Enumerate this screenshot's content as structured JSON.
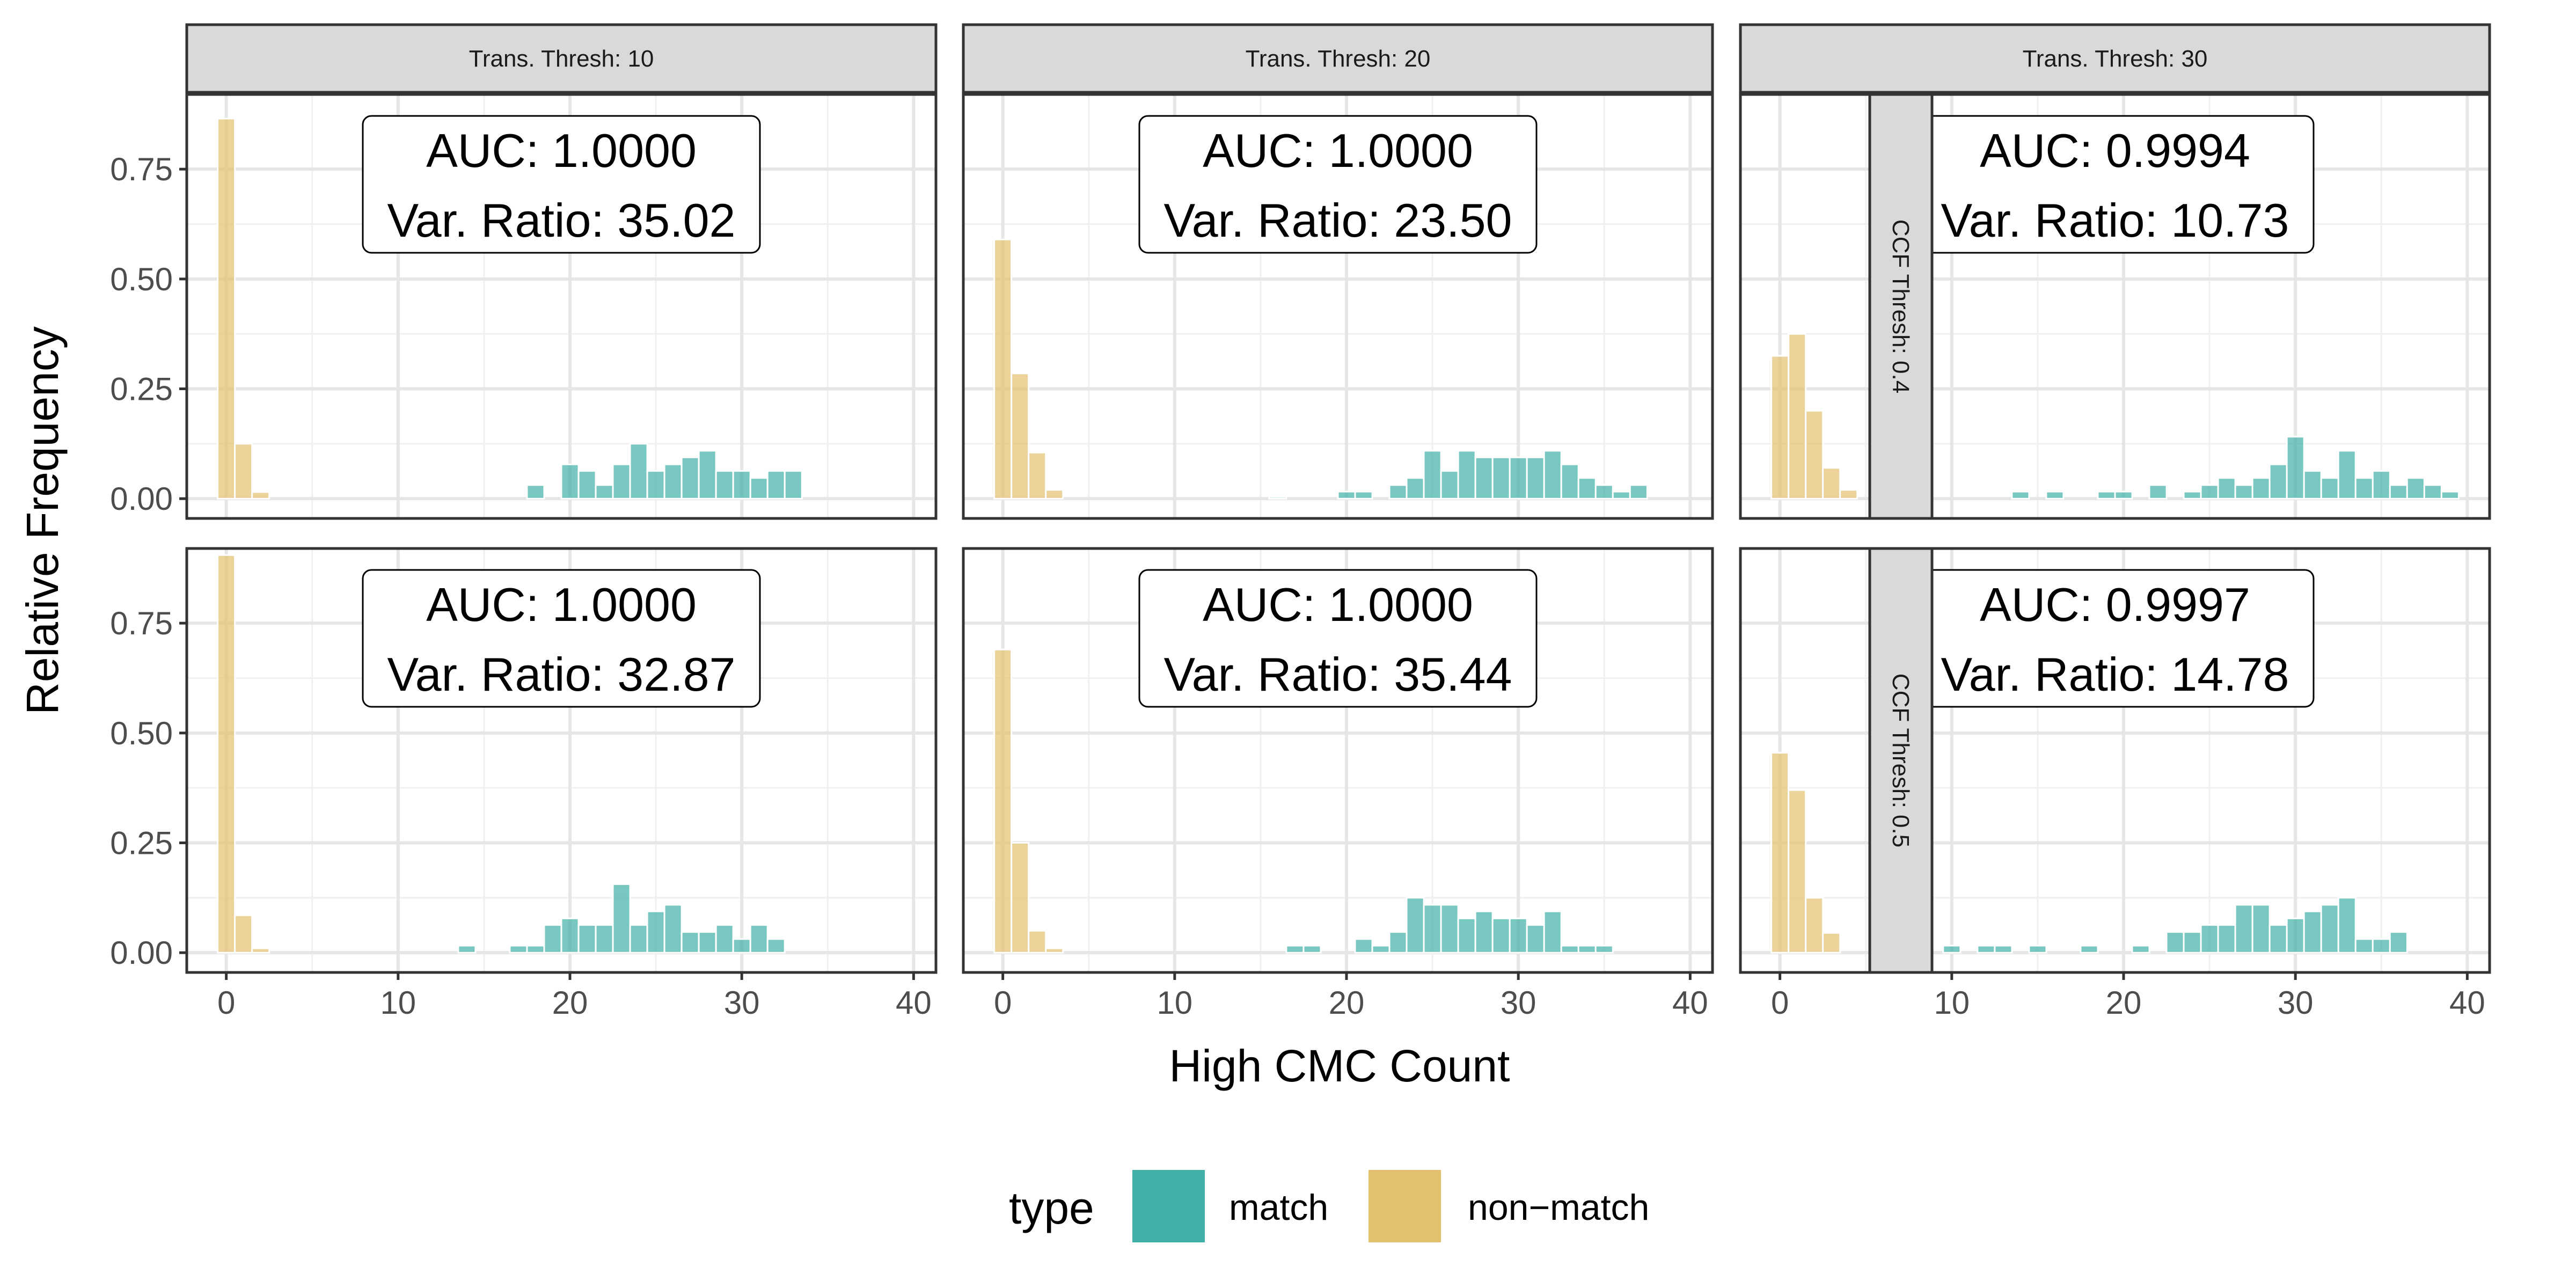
{
  "chart_data": {
    "type": "bar",
    "subtype": "faceted-histogram",
    "xlabel": "High CMC Count",
    "ylabel": "Relative Frequency",
    "xlim": [
      -2.3,
      41.3
    ],
    "ylim": [
      -0.045,
      0.92
    ],
    "x_ticks": [
      0,
      10,
      20,
      30,
      40
    ],
    "y_ticks": [
      0.0,
      0.25,
      0.5,
      0.75
    ],
    "y_tick_labels": [
      "0.00",
      "0.25",
      "0.50",
      "0.75"
    ],
    "grid": true,
    "column_facets": [
      "Trans. Thresh: 10",
      "Trans. Thresh: 20",
      "Trans. Thresh: 30"
    ],
    "row_facets": [
      "CCF Thresh: 0.4",
      "CCF Thresh: 0.5"
    ],
    "legend": {
      "title": "type",
      "position": "bottom",
      "entries": [
        {
          "label": "match",
          "color": "#3fb1a6"
        },
        {
          "label": "non−match",
          "color": "#e2c06d"
        }
      ]
    },
    "panels": [
      {
        "col": 0,
        "row": 0,
        "auc_label": "AUC: 1.0000",
        "var_ratio_label": "Var. Ratio: 35.02",
        "non_match": {
          "x": [
            0,
            1,
            2
          ],
          "values": [
            0.865,
            0.125,
            0.015
          ]
        },
        "match": {
          "x": [
            18,
            20,
            21,
            22,
            23,
            24,
            25,
            26,
            27,
            28,
            29,
            30,
            31,
            32,
            33
          ],
          "values": [
            0.031,
            0.078,
            0.063,
            0.031,
            0.078,
            0.125,
            0.063,
            0.078,
            0.094,
            0.109,
            0.063,
            0.063,
            0.047,
            0.063,
            0.063
          ]
        }
      },
      {
        "col": 1,
        "row": 0,
        "auc_label": "AUC: 1.0000",
        "var_ratio_label": "Var. Ratio: 23.50",
        "non_match": {
          "x": [
            0,
            1,
            2,
            3
          ],
          "values": [
            0.59,
            0.285,
            0.105,
            0.02
          ]
        },
        "match": {
          "x": [
            16,
            20,
            21,
            23,
            24,
            25,
            26,
            27,
            28,
            29,
            30,
            31,
            32,
            33,
            34,
            35,
            36,
            37
          ],
          "values": [
            0.004,
            0.016,
            0.016,
            0.031,
            0.047,
            0.109,
            0.063,
            0.109,
            0.094,
            0.094,
            0.094,
            0.094,
            0.109,
            0.078,
            0.047,
            0.031,
            0.016,
            0.031
          ]
        }
      },
      {
        "col": 2,
        "row": 0,
        "auc_label": "AUC: 0.9994",
        "var_ratio_label": "Var. Ratio: 10.73",
        "non_match": {
          "x": [
            0,
            1,
            2,
            3,
            4
          ],
          "values": [
            0.325,
            0.375,
            0.2,
            0.07,
            0.02
          ]
        },
        "match": {
          "x": [
            14,
            16,
            19,
            20,
            22,
            24,
            25,
            26,
            27,
            28,
            29,
            30,
            31,
            32,
            33,
            34,
            35,
            36,
            37,
            38,
            39
          ],
          "values": [
            0.016,
            0.016,
            0.016,
            0.016,
            0.031,
            0.016,
            0.031,
            0.047,
            0.031,
            0.047,
            0.078,
            0.141,
            0.063,
            0.047,
            0.109,
            0.047,
            0.063,
            0.031,
            0.047,
            0.031,
            0.016
          ]
        }
      },
      {
        "col": 0,
        "row": 1,
        "auc_label": "AUC: 1.0000",
        "var_ratio_label": "Var. Ratio: 32.87",
        "non_match": {
          "x": [
            0,
            1,
            2
          ],
          "values": [
            0.905,
            0.085,
            0.01
          ]
        },
        "match": {
          "x": [
            14,
            17,
            18,
            19,
            20,
            21,
            22,
            23,
            24,
            25,
            26,
            27,
            28,
            29,
            30,
            31,
            32
          ],
          "values": [
            0.016,
            0.016,
            0.016,
            0.063,
            0.078,
            0.063,
            0.063,
            0.156,
            0.063,
            0.094,
            0.109,
            0.047,
            0.047,
            0.063,
            0.031,
            0.063,
            0.031
          ]
        }
      },
      {
        "col": 1,
        "row": 1,
        "auc_label": "AUC: 1.0000",
        "var_ratio_label": "Var. Ratio: 35.44",
        "non_match": {
          "x": [
            0,
            1,
            2,
            3
          ],
          "values": [
            0.69,
            0.25,
            0.05,
            0.01
          ]
        },
        "match": {
          "x": [
            17,
            18,
            21,
            22,
            23,
            24,
            25,
            26,
            27,
            28,
            29,
            30,
            31,
            32,
            33,
            34,
            35
          ],
          "values": [
            0.016,
            0.016,
            0.031,
            0.016,
            0.047,
            0.125,
            0.109,
            0.109,
            0.078,
            0.094,
            0.078,
            0.078,
            0.063,
            0.094,
            0.016,
            0.016,
            0.016
          ]
        }
      },
      {
        "col": 2,
        "row": 1,
        "auc_label": "AUC: 0.9997",
        "var_ratio_label": "Var. Ratio: 14.78",
        "non_match": {
          "x": [
            0,
            1,
            2,
            3
          ],
          "values": [
            0.455,
            0.37,
            0.125,
            0.045
          ]
        },
        "match": {
          "x": [
            10,
            12,
            13,
            15,
            18,
            21,
            23,
            24,
            25,
            26,
            27,
            28,
            29,
            30,
            31,
            32,
            33,
            34,
            35,
            36
          ],
          "values": [
            0.016,
            0.016,
            0.016,
            0.016,
            0.016,
            0.016,
            0.047,
            0.047,
            0.063,
            0.063,
            0.109,
            0.109,
            0.063,
            0.078,
            0.094,
            0.109,
            0.125,
            0.031,
            0.031,
            0.047
          ]
        }
      }
    ]
  }
}
